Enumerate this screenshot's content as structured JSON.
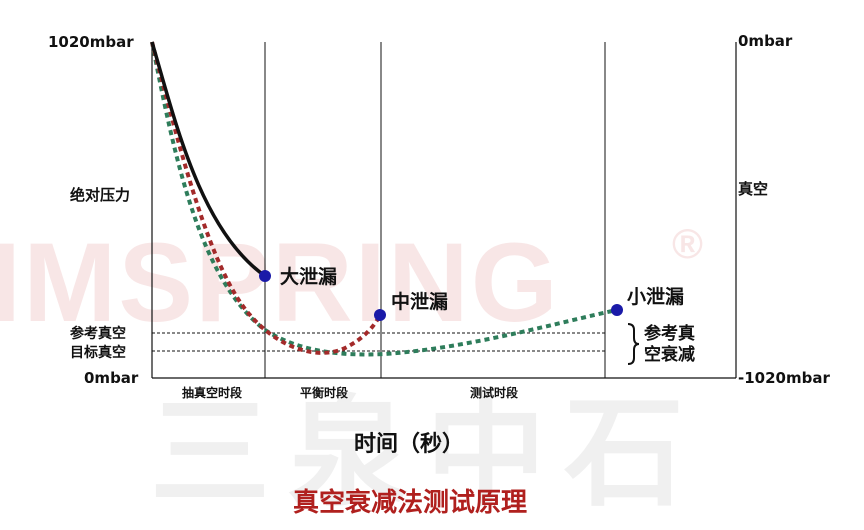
{
  "watermark": {
    "brand": "IMSPRING",
    "reg": "®",
    "cn": "三泉中石"
  },
  "left_axis": {
    "top_label": "1020mbar",
    "bottom_label": "0mbar",
    "title": "绝对压力",
    "ref_label": "参考真空",
    "target_label": "目标真空"
  },
  "right_axis": {
    "top_label": "0mbar",
    "bottom_label": "-1020mbar",
    "title": "真空"
  },
  "phases": [
    "抽真空时段",
    "平衡时段",
    "测试时段"
  ],
  "points": {
    "large": "大泄漏",
    "medium": "中泄漏",
    "small": "小泄漏"
  },
  "decay_label": [
    "参考真",
    "空衰减"
  ],
  "x_title": "时间（秒）",
  "caption": "真空衰减法测试原理",
  "colors": {
    "large_leak": "#111111",
    "medium_leak": "#a32a2a",
    "small_leak": "#2e7d5b",
    "dot": "#1a1aa8",
    "caption": "#b0201e"
  }
}
